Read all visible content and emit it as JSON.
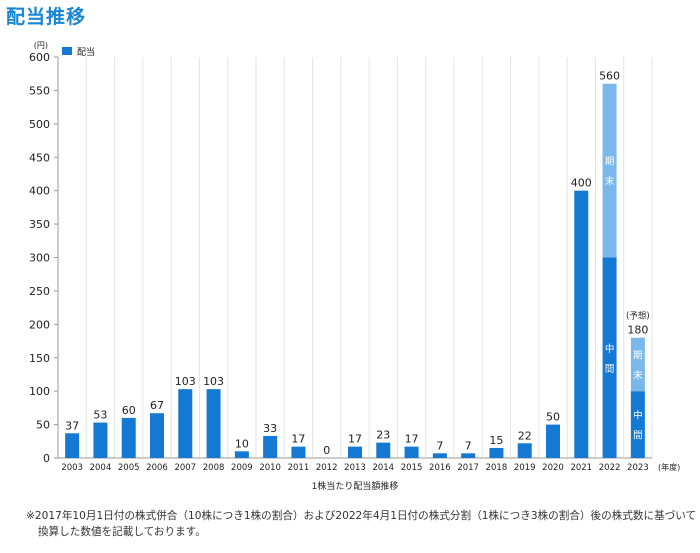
{
  "page": {
    "title": "配当推移"
  },
  "colors": {
    "accent": "#1a86d6",
    "bar_primary": "#1479d3",
    "bar_secondary": "#7ab8ea"
  },
  "chart_data": {
    "type": "bar",
    "stacked": true,
    "ylabel": "(円)",
    "xlabel": "(年度)",
    "caption": "1株当たり配当額推移",
    "ylim": [
      0,
      600
    ],
    "yticks": [
      0,
      50,
      100,
      150,
      200,
      250,
      300,
      350,
      400,
      450,
      500,
      550,
      600
    ],
    "grid": "vertical",
    "legend": {
      "placement": "top-left",
      "entries": [
        {
          "label": "配当",
          "color": "#1479d3"
        }
      ]
    },
    "categories": [
      "2003",
      "2004",
      "2005",
      "2006",
      "2007",
      "2008",
      "2009",
      "2010",
      "2011",
      "2012",
      "2013",
      "2014",
      "2015",
      "2016",
      "2017",
      "2018",
      "2019",
      "2020",
      "2021",
      "2022",
      "2023"
    ],
    "series": [
      {
        "name": "中間",
        "color": "#1479d3",
        "values": [
          37,
          53,
          60,
          67,
          103,
          103,
          10,
          33,
          17,
          0,
          17,
          23,
          17,
          7,
          7,
          15,
          22,
          50,
          400,
          300,
          100
        ]
      },
      {
        "name": "期末",
        "color": "#7ab8ea",
        "values": [
          0,
          0,
          0,
          0,
          0,
          0,
          0,
          0,
          0,
          0,
          0,
          0,
          0,
          0,
          0,
          0,
          0,
          0,
          0,
          260,
          80
        ]
      }
    ],
    "totals": [
      37,
      53,
      60,
      67,
      103,
      103,
      10,
      33,
      17,
      0,
      17,
      23,
      17,
      7,
      7,
      15,
      22,
      50,
      400,
      560,
      180
    ],
    "segment_labels": [
      {
        "category": "2022",
        "series": "期末",
        "text": "期末"
      },
      {
        "category": "2022",
        "series": "中間",
        "text": "中間"
      },
      {
        "category": "2023",
        "series": "期末",
        "text": "期末"
      },
      {
        "category": "2023",
        "series": "中間",
        "text": "中間"
      }
    ],
    "annotations": [
      {
        "category": "2023",
        "text": "(予想)"
      }
    ]
  },
  "footnote": "※2017年10月1日付の株式併合（10株につき1株の割合）および2022年4月1日付の株式分割（1株につき3株の割合）後の株式数に基づいて換算した数値を記載しております。"
}
